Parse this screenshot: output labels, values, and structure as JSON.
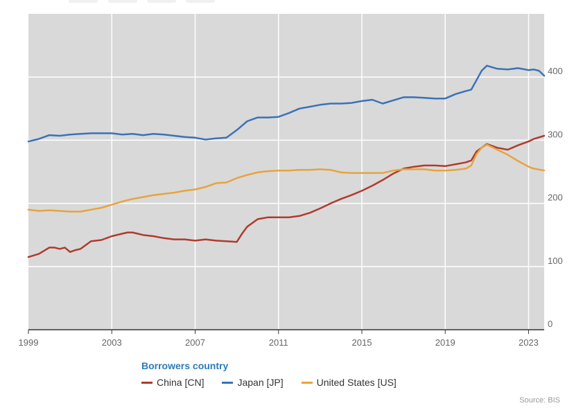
{
  "chart_data": {
    "type": "line",
    "title": "",
    "xlabel": "",
    "ylabel": "",
    "xlim": [
      1999,
      2023.75
    ],
    "ylim": [
      0,
      500
    ],
    "x_ticks": [
      1999,
      2003,
      2007,
      2011,
      2015,
      2019,
      2023
    ],
    "x_tick_labels": [
      "1999",
      "2003",
      "2007",
      "2011",
      "2015",
      "2019",
      "2023"
    ],
    "y_ticks": [
      0,
      100,
      200,
      300,
      400
    ],
    "y_tick_labels": [
      "0",
      "100",
      "200",
      "300",
      "400"
    ],
    "grid": true,
    "legend_title": "Borrowers country",
    "legend_position": "bottom",
    "series": [
      {
        "name": "China [CN]",
        "color": "#b03a2e",
        "x": [
          1999,
          1999.5,
          2000,
          2000.25,
          2000.5,
          2000.75,
          2001,
          2001.25,
          2001.5,
          2002,
          2002.5,
          2003,
          2003.5,
          2003.75,
          2004,
          2004.25,
          2004.5,
          2005,
          2005.5,
          2006,
          2006.5,
          2007,
          2007.5,
          2008,
          2008.5,
          2009,
          2009.25,
          2009.5,
          2010,
          2010.5,
          2011,
          2011.5,
          2012,
          2012.5,
          2013,
          2013.5,
          2014,
          2014.5,
          2015,
          2015.5,
          2016,
          2016.5,
          2017,
          2017.5,
          2018,
          2018.5,
          2019,
          2019.5,
          2020,
          2020.25,
          2020.5,
          2020.75,
          2021,
          2021.5,
          2022,
          2022.5,
          2023,
          2023.25,
          2023.75
        ],
        "values": [
          115,
          120,
          130,
          130,
          128,
          130,
          123,
          126,
          128,
          140,
          142,
          148,
          152,
          154,
          154,
          152,
          150,
          148,
          145,
          143,
          143,
          141,
          143,
          141,
          140,
          139,
          152,
          163,
          175,
          178,
          178,
          178,
          180,
          185,
          192,
          200,
          207,
          213,
          220,
          228,
          237,
          247,
          255,
          258,
          260,
          260,
          259,
          262,
          265,
          268,
          282,
          288,
          294,
          288,
          285,
          292,
          298,
          302,
          307
        ]
      },
      {
        "name": "Japan [JP]",
        "color": "#3a72b8",
        "x": [
          1999,
          1999.5,
          2000,
          2000.5,
          2001,
          2001.5,
          2002,
          2002.5,
          2003,
          2003.5,
          2004,
          2004.5,
          2005,
          2005.5,
          2006,
          2006.5,
          2007,
          2007.5,
          2008,
          2008.5,
          2009,
          2009.5,
          2010,
          2010.5,
          2011,
          2011.5,
          2012,
          2012.5,
          2013,
          2013.5,
          2014,
          2014.5,
          2015,
          2015.5,
          2016,
          2016.5,
          2017,
          2017.5,
          2018,
          2018.5,
          2019,
          2019.5,
          2020,
          2020.25,
          2020.5,
          2020.75,
          2021,
          2021.5,
          2022,
          2022.5,
          2023,
          2023.25,
          2023.5,
          2023.75
        ],
        "values": [
          298,
          302,
          308,
          307,
          309,
          310,
          311,
          311,
          311,
          309,
          310,
          308,
          310,
          309,
          307,
          305,
          304,
          301,
          303,
          304,
          316,
          330,
          336,
          336,
          337,
          343,
          350,
          353,
          356,
          358,
          358,
          359,
          362,
          364,
          358,
          363,
          368,
          368,
          367,
          366,
          366,
          373,
          378,
          380,
          395,
          410,
          418,
          413,
          412,
          414,
          411,
          412,
          410,
          402
        ]
      },
      {
        "name": "United States [US]",
        "color": "#e8a33d",
        "x": [
          1999,
          1999.5,
          2000,
          2000.5,
          2001,
          2001.5,
          2002,
          2002.5,
          2003,
          2003.5,
          2004,
          2004.5,
          2005,
          2005.5,
          2006,
          2006.5,
          2007,
          2007.5,
          2008,
          2008.5,
          2009,
          2009.5,
          2010,
          2010.5,
          2011,
          2011.5,
          2012,
          2012.5,
          2013,
          2013.5,
          2014,
          2014.5,
          2015,
          2015.5,
          2016,
          2016.5,
          2017,
          2017.5,
          2018,
          2018.5,
          2019,
          2019.5,
          2020,
          2020.25,
          2020.5,
          2020.75,
          2021,
          2021.5,
          2022,
          2022.5,
          2023,
          2023.25,
          2023.75
        ],
        "values": [
          190,
          188,
          189,
          188,
          187,
          187,
          190,
          193,
          198,
          203,
          207,
          210,
          213,
          215,
          217,
          220,
          222,
          226,
          232,
          233,
          240,
          245,
          249,
          251,
          252,
          252,
          253,
          253,
          254,
          253,
          249,
          248,
          248,
          248,
          248,
          252,
          254,
          254,
          254,
          252,
          252,
          253,
          255,
          260,
          278,
          288,
          293,
          285,
          277,
          267,
          258,
          255,
          252
        ]
      }
    ]
  },
  "source": "Source: BIS"
}
